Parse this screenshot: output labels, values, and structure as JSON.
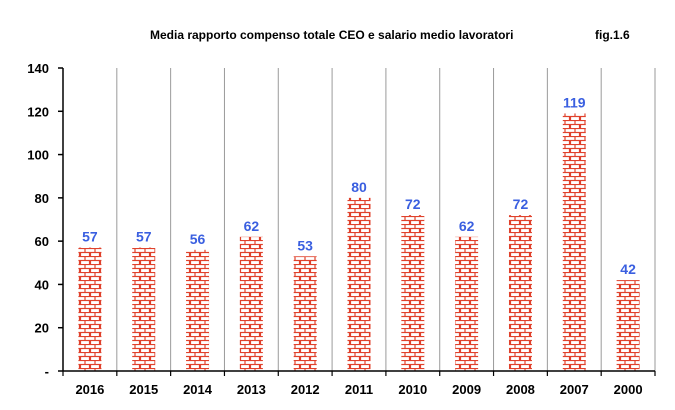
{
  "chart_data": {
    "type": "bar",
    "title": "Media rapporto compenso totale CEO e salario medio lavoratori",
    "fig_label": "fig.1.6",
    "categories": [
      "2016",
      "2015",
      "2014",
      "2013",
      "2012",
      "2011",
      "2010",
      "2009",
      "2008",
      "2007",
      "2000"
    ],
    "values": [
      57,
      57,
      56,
      62,
      53,
      80,
      72,
      62,
      72,
      119,
      42
    ],
    "data_labels": [
      "57",
      "57",
      "56",
      "62",
      "53",
      "80",
      "72",
      "62",
      "72",
      "119",
      "42"
    ],
    "ylim": [
      0,
      140
    ],
    "y_ticks": [
      0,
      20,
      40,
      60,
      80,
      100,
      120,
      140
    ],
    "y_tick_labels": [
      "-",
      "20",
      "40",
      "60",
      "80",
      "100",
      "120",
      "140"
    ],
    "xlabel": "",
    "ylabel": "",
    "grid": false,
    "category_separators": true,
    "bar_fill": "brick-pattern",
    "colors": {
      "bar_mortar": "#ffffff",
      "bar_brick": "#e0412b",
      "data_label": "#3a5fe0",
      "separator": "#9a9a9a",
      "axis": "#000000"
    }
  }
}
